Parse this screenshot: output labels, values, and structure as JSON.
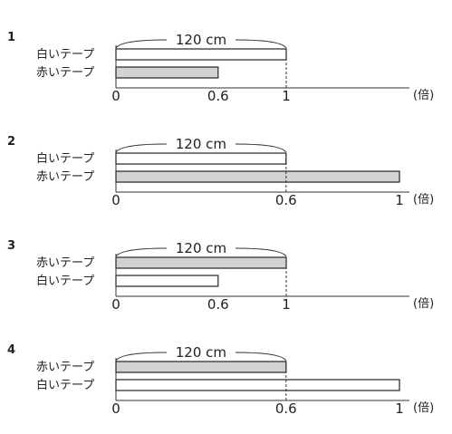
{
  "problems": [
    {
      "number": "1",
      "measure_label": "120 cm",
      "rows": [
        {
          "label": "白いテープ",
          "color": "white",
          "ratio": 1
        },
        {
          "label": "赤いテープ",
          "color": "gray",
          "ratio": 0.6
        }
      ],
      "ticks": [
        {
          "value": 0,
          "label": "0"
        },
        {
          "value": 0.6,
          "label": "0.6"
        },
        {
          "value": 1,
          "label": "1"
        }
      ],
      "unit": "(倍)"
    },
    {
      "number": "2",
      "measure_label": "120 cm",
      "rows": [
        {
          "label": "白いテープ",
          "color": "white",
          "ratio": 0.6
        },
        {
          "label": "赤いテープ",
          "color": "gray",
          "ratio": 1
        }
      ],
      "ticks": [
        {
          "value": 0,
          "label": "0"
        },
        {
          "value": 0.6,
          "label": "0.6"
        },
        {
          "value": 1,
          "label": "1"
        }
      ],
      "unit": "(倍)"
    },
    {
      "number": "3",
      "measure_label": "120 cm",
      "rows": [
        {
          "label": "赤いテープ",
          "color": "gray",
          "ratio": 1
        },
        {
          "label": "白いテープ",
          "color": "white",
          "ratio": 0.6
        }
      ],
      "ticks": [
        {
          "value": 0,
          "label": "0"
        },
        {
          "value": 0.6,
          "label": "0.6"
        },
        {
          "value": 1,
          "label": "1"
        }
      ],
      "unit": "(倍)"
    },
    {
      "number": "4",
      "measure_label": "120 cm",
      "rows": [
        {
          "label": "赤いテープ",
          "color": "gray",
          "ratio": 0.6
        },
        {
          "label": "白いテープ",
          "color": "white",
          "ratio": 1
        }
      ],
      "ticks": [
        {
          "value": 0,
          "label": "0"
        },
        {
          "value": 0.6,
          "label": "0.6"
        },
        {
          "value": 1,
          "label": "1"
        }
      ],
      "unit": "(倍)"
    }
  ],
  "colors": {
    "gray": "#d2d2d2",
    "white": "#ffffff",
    "stroke": "#333333"
  }
}
